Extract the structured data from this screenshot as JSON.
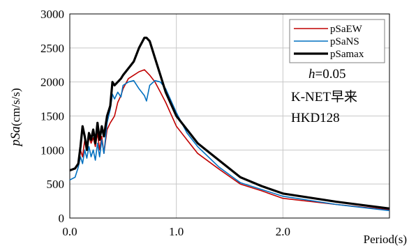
{
  "chart_data": {
    "type": "line",
    "xlabel": "Period(s)",
    "ylabel_italic": "pSa",
    "ylabel_unit": "(cm/s/s)",
    "xlim": [
      0,
      3.0
    ],
    "ylim": [
      0,
      3000
    ],
    "x_ticks": [
      {
        "v": 0,
        "label": "0.0"
      },
      {
        "v": 1.0,
        "label": "1.0"
      },
      {
        "v": 2.0,
        "label": "2.0"
      }
    ],
    "y_ticks": [
      0,
      500,
      1000,
      1500,
      2000,
      2500,
      3000
    ],
    "grid": true,
    "legend_position": "top-right",
    "annotations": {
      "damping_italic": "h",
      "damping_value": "=0.05",
      "station": "K-NET早来",
      "code": "HKD128"
    },
    "series": [
      {
        "name": "pSaEW",
        "color": "#c00000",
        "x": [
          0.0,
          0.05,
          0.08,
          0.1,
          0.12,
          0.14,
          0.16,
          0.18,
          0.2,
          0.22,
          0.24,
          0.26,
          0.28,
          0.3,
          0.32,
          0.35,
          0.38,
          0.4,
          0.42,
          0.45,
          0.48,
          0.5,
          0.55,
          0.6,
          0.65,
          0.7,
          0.75,
          0.8,
          0.85,
          0.9,
          1.0,
          1.1,
          1.2,
          1.4,
          1.6,
          1.8,
          2.0,
          2.5,
          3.0
        ],
        "y": [
          700,
          720,
          780,
          1000,
          900,
          1150,
          1000,
          1200,
          1100,
          1180,
          1050,
          1250,
          1000,
          1200,
          950,
          1300,
          1400,
          1450,
          1500,
          1700,
          1800,
          1900,
          2050,
          2100,
          2150,
          2180,
          2100,
          2000,
          1850,
          1700,
          1350,
          1150,
          950,
          720,
          500,
          400,
          290,
          200,
          120
        ]
      },
      {
        "name": "pSaNS",
        "color": "#0070c0",
        "x": [
          0.0,
          0.05,
          0.08,
          0.1,
          0.12,
          0.14,
          0.16,
          0.18,
          0.2,
          0.22,
          0.24,
          0.26,
          0.28,
          0.3,
          0.32,
          0.35,
          0.38,
          0.4,
          0.42,
          0.45,
          0.48,
          0.5,
          0.55,
          0.6,
          0.65,
          0.7,
          0.72,
          0.75,
          0.8,
          0.85,
          0.9,
          1.0,
          1.1,
          1.2,
          1.4,
          1.6,
          1.8,
          2.0,
          2.5,
          3.0
        ],
        "y": [
          560,
          600,
          750,
          900,
          800,
          1000,
          880,
          1050,
          900,
          1000,
          850,
          1100,
          900,
          1150,
          950,
          1400,
          1600,
          1820,
          1750,
          1850,
          1780,
          1950,
          2000,
          2020,
          1900,
          1800,
          1720,
          1950,
          2020,
          2000,
          1900,
          1550,
          1250,
          1050,
          750,
          520,
          420,
          320,
          200,
          110
        ]
      },
      {
        "name": "pSamax",
        "color": "#000000",
        "x": [
          0.0,
          0.05,
          0.08,
          0.1,
          0.12,
          0.14,
          0.16,
          0.18,
          0.2,
          0.22,
          0.24,
          0.26,
          0.28,
          0.3,
          0.32,
          0.35,
          0.38,
          0.4,
          0.42,
          0.45,
          0.48,
          0.5,
          0.55,
          0.6,
          0.65,
          0.7,
          0.72,
          0.75,
          0.8,
          0.85,
          0.9,
          1.0,
          1.1,
          1.2,
          1.4,
          1.6,
          1.8,
          2.0,
          2.5,
          3.0
        ],
        "y": [
          700,
          730,
          800,
          1050,
          1350,
          1200,
          1000,
          1250,
          1150,
          1300,
          1100,
          1400,
          1150,
          1350,
          1200,
          1500,
          1650,
          2000,
          1950,
          2000,
          2050,
          2100,
          2200,
          2300,
          2500,
          2650,
          2650,
          2600,
          2350,
          2100,
          1850,
          1500,
          1300,
          1100,
          850,
          600,
          470,
          360,
          240,
          140
        ]
      }
    ]
  }
}
